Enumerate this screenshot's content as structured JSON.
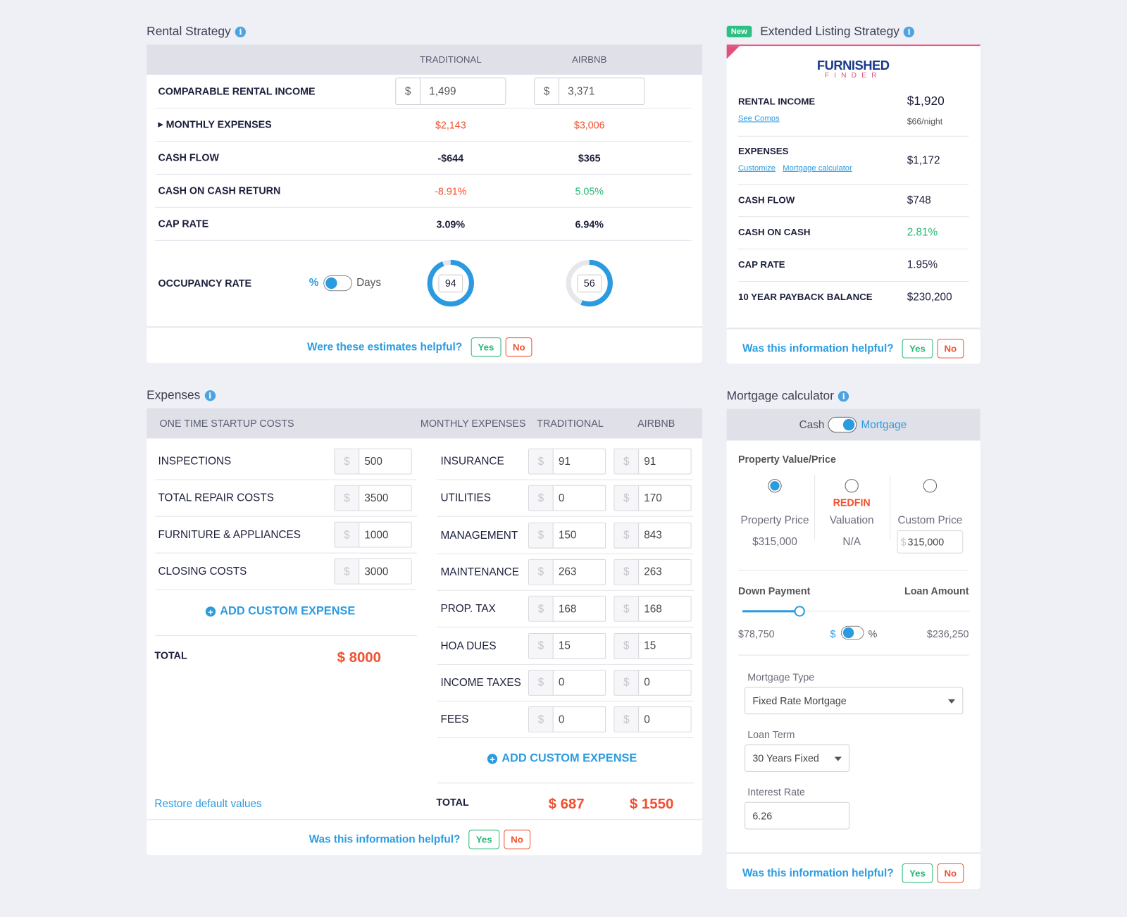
{
  "rental": {
    "title": "Rental Strategy",
    "col_traditional": "TRADITIONAL",
    "col_airbnb": "AIRBNB",
    "comparable_label": "COMPARABLE RENTAL INCOME",
    "currency": "$",
    "traditional_income": "1,499",
    "airbnb_income": "3,371",
    "rows": [
      {
        "label": "MONTHLY EXPENSES",
        "traditional": "$2,143",
        "airbnb": "$3,006"
      },
      {
        "label": "CASH FLOW",
        "traditional": "-$644",
        "airbnb": "$365"
      },
      {
        "label": "CASH ON CASH RETURN",
        "traditional": "-8.91%",
        "airbnb": "5.05%"
      },
      {
        "label": "CAP RATE",
        "traditional": "3.09%",
        "airbnb": "6.94%"
      }
    ],
    "occupancy_label": "OCCUPANCY RATE",
    "unit_percent": "%",
    "unit_days": "Days",
    "occupancy_traditional": "94",
    "occupancy_airbnb": "56",
    "feedback": "Were these estimates helpful?",
    "yes": "Yes",
    "no": "No"
  },
  "extended": {
    "badge": "New",
    "title": "Extended Listing Strategy",
    "logo_top": "FURNISHED",
    "logo_bottom": "FINDER",
    "rental_income_label": "RENTAL INCOME",
    "rental_income": "$1,920",
    "see_comps": "See Comps",
    "per_night": "$66/night",
    "expenses_label": "EXPENSES",
    "expenses": "$1,172",
    "customize": "Customize",
    "mortgage_calc": "Mortgage calculator",
    "rows": [
      {
        "label": "CASH FLOW",
        "value": "$748"
      },
      {
        "label": "CASH ON CASH",
        "value": "2.81%"
      },
      {
        "label": "CAP RATE",
        "value": "1.95%"
      },
      {
        "label": "10 YEAR PAYBACK BALANCE",
        "value": "$230,200"
      }
    ],
    "feedback": "Was this information helpful?",
    "yes": "Yes",
    "no": "No"
  },
  "expenses": {
    "title": "Expenses",
    "col_startup": "ONE TIME STARTUP COSTS",
    "col_monthly": "MONTHLY EXPENSES",
    "col_traditional": "TRADITIONAL",
    "col_airbnb": "AIRBNB",
    "currency": "$",
    "startup": [
      {
        "label": "INSPECTIONS",
        "value": "500"
      },
      {
        "label": "TOTAL REPAIR COSTS",
        "value": "3500"
      },
      {
        "label": "FURNITURE & APPLIANCES",
        "value": "1000"
      },
      {
        "label": "CLOSING COSTS",
        "value": "3000"
      }
    ],
    "monthly": [
      {
        "label": "INSURANCE",
        "traditional": "91",
        "airbnb": "91"
      },
      {
        "label": "UTILITIES",
        "traditional": "0",
        "airbnb": "170"
      },
      {
        "label": "MANAGEMENT",
        "traditional": "150",
        "airbnb": "843"
      },
      {
        "label": "MAINTENANCE",
        "traditional": "263",
        "airbnb": "263"
      },
      {
        "label": "PROP. TAX",
        "traditional": "168",
        "airbnb": "168"
      },
      {
        "label": "HOA DUES",
        "traditional": "15",
        "airbnb": "15"
      },
      {
        "label": "INCOME TAXES",
        "traditional": "0",
        "airbnb": "0"
      },
      {
        "label": "FEES",
        "traditional": "0",
        "airbnb": "0"
      }
    ],
    "add_custom": "ADD CUSTOM EXPENSE",
    "total_label": "TOTAL",
    "startup_total": "$ 8000",
    "monthly_total_traditional": "$ 687",
    "monthly_total_airbnb": "$ 1550",
    "restore": "Restore default values",
    "feedback": "Was this information helpful?",
    "yes": "Yes",
    "no": "No"
  },
  "mortgage": {
    "title": "Mortgage calculator",
    "cash": "Cash",
    "mortgage": "Mortgage",
    "property_value_label": "Property Value/Price",
    "opt_property_price": "Property Price",
    "property_price": "$315,000",
    "redfin": "REDFIN",
    "opt_valuation": "Valuation",
    "valuation": "N/A",
    "opt_custom": "Custom Price",
    "currency": "$",
    "custom_price": "315,000",
    "down_payment_label": "Down Payment",
    "loan_amount_label": "Loan Amount",
    "down_payment": "$78,750",
    "loan_amount": "$236,250",
    "down_payment_fraction": 0.25,
    "unit_dollar": "$",
    "unit_percent": "%",
    "mortgage_type_label": "Mortgage Type",
    "mortgage_type": "Fixed Rate Mortgage",
    "loan_term_label": "Loan Term",
    "loan_term": "30 Years Fixed",
    "interest_rate_label": "Interest Rate",
    "interest_rate": "6.26",
    "feedback": "Was this information helpful?",
    "yes": "Yes",
    "no": "No"
  },
  "colors": {
    "accent": "#2a9be0",
    "negative": "#f0502f",
    "positive": "#25b873",
    "badge": "#2dbf84",
    "pink": "#e0507a"
  }
}
